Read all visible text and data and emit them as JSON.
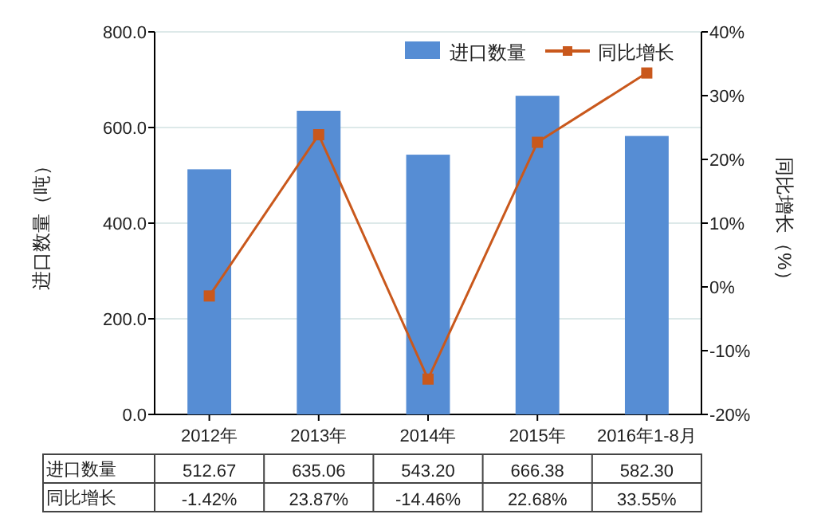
{
  "chart_data": {
    "type": "bar",
    "categories": [
      "2012年",
      "2013年",
      "2014年",
      "2015年",
      "2016年1-8月"
    ],
    "series": [
      {
        "name": "进口数量",
        "color": "#568dd4",
        "values": [
          512.67,
          635.06,
          543.2,
          666.38,
          582.3
        ],
        "value_labels": [
          "512.67",
          "635.06",
          "543.20",
          "666.38",
          "582.30"
        ]
      },
      {
        "name": "同比增长",
        "type": "line",
        "axis": "y2",
        "color": "#c9581c",
        "marker": "square",
        "values": [
          -1.42,
          23.87,
          -14.46,
          22.68,
          33.55
        ],
        "value_labels": [
          "-1.42%",
          "23.87%",
          "-14.46%",
          "22.68%",
          "33.55%"
        ]
      }
    ],
    "ylabel": "进口数量（吨）",
    "y2label": "同比增长（%）",
    "ylim": [
      0,
      800
    ],
    "yticks": [
      {
        "value": 0,
        "label": "0.0"
      },
      {
        "value": 200,
        "label": "200.0"
      },
      {
        "value": 400,
        "label": "400.0"
      },
      {
        "value": 600,
        "label": "600.0"
      },
      {
        "value": 800,
        "label": "800.0"
      }
    ],
    "y2lim": [
      -20,
      40
    ],
    "y2ticks": [
      {
        "value": -20,
        "label": "-20%"
      },
      {
        "value": -10,
        "label": "-10%"
      },
      {
        "value": 0,
        "label": "0%"
      },
      {
        "value": 10,
        "label": "10%"
      },
      {
        "value": 20,
        "label": "20%"
      },
      {
        "value": 30,
        "label": "30%"
      },
      {
        "value": 40,
        "label": "40%"
      }
    ],
    "grid": "y",
    "legend": "top right"
  }
}
